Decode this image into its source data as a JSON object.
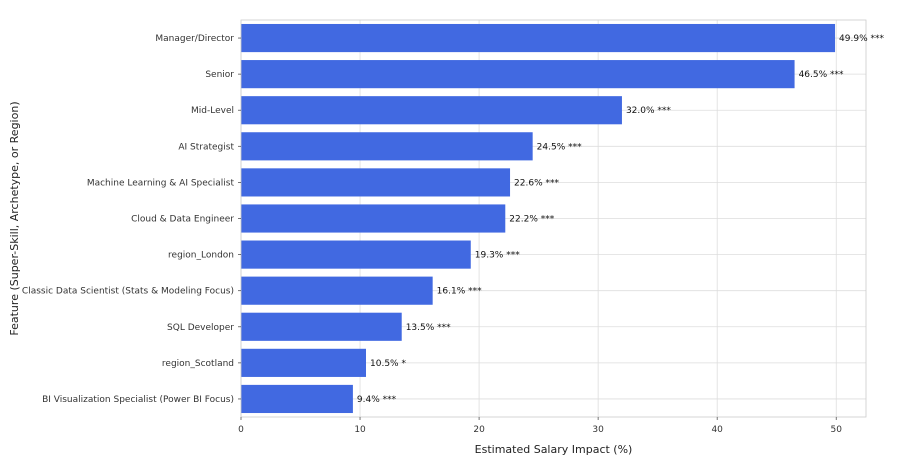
{
  "chart_data": {
    "type": "bar",
    "orientation": "horizontal",
    "title": "",
    "xlabel": "Estimated Salary Impact (%)",
    "ylabel": "Feature (Super-Skill, Archetype, or Region)",
    "xlim": [
      0,
      52.5
    ],
    "xticks": [
      0,
      10,
      20,
      30,
      40,
      50
    ],
    "grid": true,
    "bar_color": "#4169e1",
    "categories": [
      "Manager/Director",
      "Senior",
      "Mid-Level",
      "AI Strategist",
      "Machine Learning & AI Specialist",
      "Cloud & Data Engineer",
      "region_London",
      "Classic Data Scientist (Stats & Modeling Focus)",
      "SQL Developer",
      "region_Scotland",
      "BI Visualization Specialist (Power BI Focus)"
    ],
    "values": [
      49.9,
      46.5,
      32.0,
      24.5,
      22.6,
      22.2,
      19.3,
      16.1,
      13.5,
      10.5,
      9.4
    ],
    "data_labels": [
      "49.9% ***",
      "46.5% ***",
      "32.0% ***",
      "24.5% ***",
      "22.6% ***",
      "22.2% ***",
      "19.3% ***",
      "16.1% ***",
      "13.5% ***",
      "10.5% *",
      "9.4% ***"
    ]
  }
}
